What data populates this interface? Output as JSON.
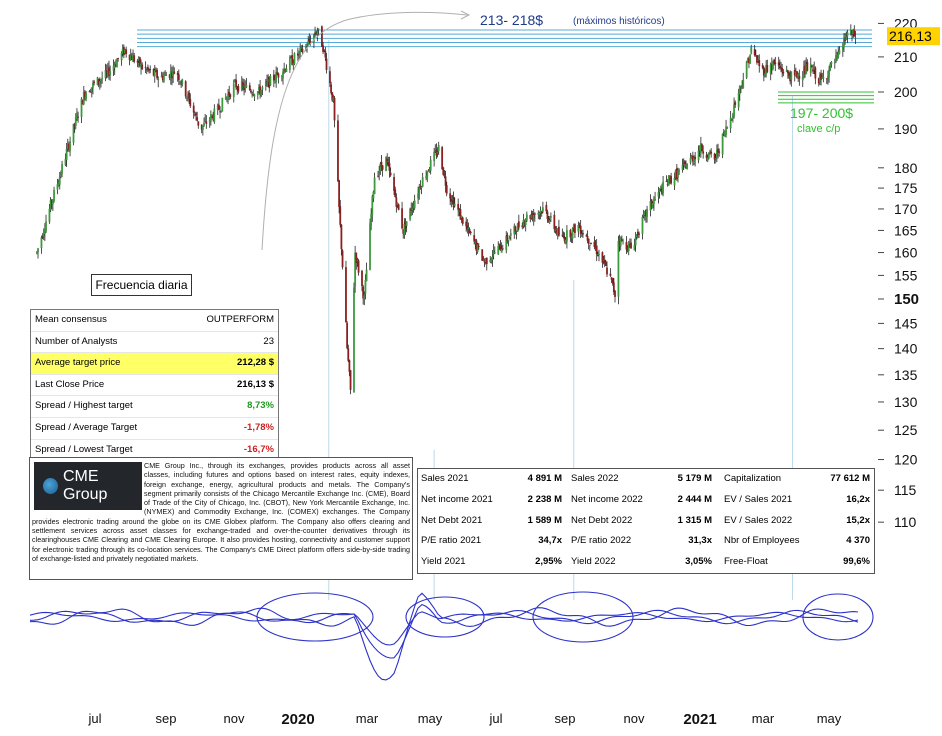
{
  "chart_data": {
    "type": "candlestick",
    "title": "",
    "yaxis": {
      "ticks": [
        110,
        115,
        120,
        125,
        130,
        135,
        140,
        145,
        150,
        155,
        160,
        165,
        170,
        175,
        180,
        190,
        200,
        210,
        220
      ],
      "bold_ticks": [
        150
      ]
    },
    "xaxis": {
      "ticks": [
        "jul",
        "sep",
        "nov",
        "2020",
        "mar",
        "may",
        "jul",
        "sep",
        "nov",
        "2021",
        "mar",
        "may"
      ],
      "bold_ticks": [
        "2020",
        "2021"
      ]
    },
    "last_price": "216,13",
    "last_price_color": "#ffd200",
    "price_path": [
      [
        "2019-06-20",
        160
      ],
      [
        "2019-07-10",
        178
      ],
      [
        "2019-08-01",
        200
      ],
      [
        "2019-08-20",
        205
      ],
      [
        "2019-09-05",
        212
      ],
      [
        "2019-09-20",
        207
      ],
      [
        "2019-10-05",
        204
      ],
      [
        "2019-10-20",
        206
      ],
      [
        "2019-11-10",
        190
      ],
      [
        "2019-11-25",
        195
      ],
      [
        "2019-12-10",
        202
      ],
      [
        "2019-12-31",
        200
      ],
      [
        "2020-01-20",
        206
      ],
      [
        "2020-02-10",
        213
      ],
      [
        "2020-02-20",
        218
      ],
      [
        "2020-02-25",
        213
      ],
      [
        "2020-03-05",
        197
      ],
      [
        "2020-03-10",
        170
      ],
      [
        "2020-03-17",
        140
      ],
      [
        "2020-03-20",
        132
      ],
      [
        "2020-03-24",
        160
      ],
      [
        "2020-04-01",
        150
      ],
      [
        "2020-04-10",
        178
      ],
      [
        "2020-04-20",
        182
      ],
      [
        "2020-05-05",
        165
      ],
      [
        "2020-05-20",
        176
      ],
      [
        "2020-06-05",
        185
      ],
      [
        "2020-06-12",
        175
      ],
      [
        "2020-06-30",
        165
      ],
      [
        "2020-07-15",
        158
      ],
      [
        "2020-08-01",
        162
      ],
      [
        "2020-08-20",
        168
      ],
      [
        "2020-09-05",
        170
      ],
      [
        "2020-09-20",
        163
      ],
      [
        "2020-10-05",
        166
      ],
      [
        "2020-10-20",
        161
      ],
      [
        "2020-11-01",
        155
      ],
      [
        "2020-11-06",
        151
      ],
      [
        "2020-11-09",
        163
      ],
      [
        "2020-11-20",
        161
      ],
      [
        "2020-12-05",
        170
      ],
      [
        "2020-12-20",
        176
      ],
      [
        "2021-01-05",
        180
      ],
      [
        "2021-01-20",
        185
      ],
      [
        "2021-02-01",
        182
      ],
      [
        "2021-02-15",
        193
      ],
      [
        "2021-02-25",
        203
      ],
      [
        "2021-03-05",
        212
      ],
      [
        "2021-03-15",
        206
      ],
      [
        "2021-03-25",
        208
      ],
      [
        "2021-04-10",
        204
      ],
      [
        "2021-04-25",
        207
      ],
      [
        "2021-05-05",
        203
      ],
      [
        "2021-05-20",
        210
      ],
      [
        "2021-05-28",
        217
      ],
      [
        "2021-06-04",
        216.13
      ]
    ],
    "annotations": {
      "resistance_label": "213- 218$",
      "resistance_sublabel": "(máximos históricos)",
      "resistance_low": 213,
      "resistance_high": 218,
      "support_label": "197- 200$",
      "support_sublabel": "clave c/p",
      "support_low": 197,
      "support_high": 200,
      "resistance_color": "#58a9d6",
      "support_color": "#2ec42e"
    },
    "x_range": [
      "2019-06-14",
      "2021-06-08"
    ],
    "y_range": [
      106,
      223
    ],
    "scale": "log",
    "grid": false,
    "legend": "none",
    "oscillator": {
      "type": "line",
      "series_count": 3,
      "color": "#2c32c8"
    }
  },
  "frequency_label": "Frecuencia diaria",
  "consensus": [
    {
      "label": "Mean consensus",
      "value": "OUTPERFORM",
      "style": ""
    },
    {
      "label": "Number of Analysts",
      "value": "23",
      "style": ""
    },
    {
      "label": "Average target price",
      "value": "212,28 $",
      "style": "bold",
      "highlight": true
    },
    {
      "label": "Last Close Price",
      "value": "216,13 $",
      "style": "bold"
    },
    {
      "label": "Spread / Highest target",
      "value": "8,73%",
      "style": "green"
    },
    {
      "label": "Spread / Average Target",
      "value": "-1,78%",
      "style": "red"
    },
    {
      "label": "Spread / Lowest Target",
      "value": "-16,7%",
      "style": "red"
    }
  ],
  "company": {
    "logo_text": "CME Group",
    "description": "CME Group Inc., through its exchanges, provides products across all asset classes, including futures and options based on interest rates, equity indexes, foreign exchange, energy, agricultural products and metals. The Company's segment primarily consists of the Chicago Mercantile Exchange Inc. (CME), Board of Trade of the City of Chicago, Inc. (CBOT), New York Mercantile Exchange, Inc. (NYMEX) and Commodity Exchange, Inc. (COMEX) exchanges. The Company provides electronic trading around the globe on its CME Globex platform. The Company also offers clearing and settlement services across asset classes for exchange-traded and over-the-counter derivatives through its clearinghouses CME Clearing and CME Clearing Europe. It also provides hosting, connectivity and customer support for electronic trading through its co-location services. The Company's CME Direct platform offers side-by-side trading of exchange-listed and privately negotiated markets."
  },
  "fundamentals": [
    [
      {
        "label": "Sales 2021",
        "value": "4 891 M"
      },
      {
        "label": "Sales 2022",
        "value": "5 179 M"
      },
      {
        "label": "Capitalization",
        "value": "77 612 M"
      }
    ],
    [
      {
        "label": "Net income 2021",
        "value": "2 238 M"
      },
      {
        "label": "Net income 2022",
        "value": "2 444 M"
      },
      {
        "label": "EV / Sales 2021",
        "value": "16,2x"
      }
    ],
    [
      {
        "label": "Net Debt 2021",
        "value": "1 589 M"
      },
      {
        "label": "Net Debt 2022",
        "value": "1 315 M"
      },
      {
        "label": "EV / Sales 2022",
        "value": "15,2x"
      }
    ],
    [
      {
        "label": "P/E ratio 2021",
        "value": "34,7x"
      },
      {
        "label": "P/E ratio 2022",
        "value": "31,3x"
      },
      {
        "label": "Nbr of Employees",
        "value": "4 370"
      }
    ],
    [
      {
        "label": "Yield 2021",
        "value": "2,95%"
      },
      {
        "label": "Yield 2022",
        "value": "3,05%"
      },
      {
        "label": "Free-Float",
        "value": "99,6%"
      }
    ]
  ]
}
